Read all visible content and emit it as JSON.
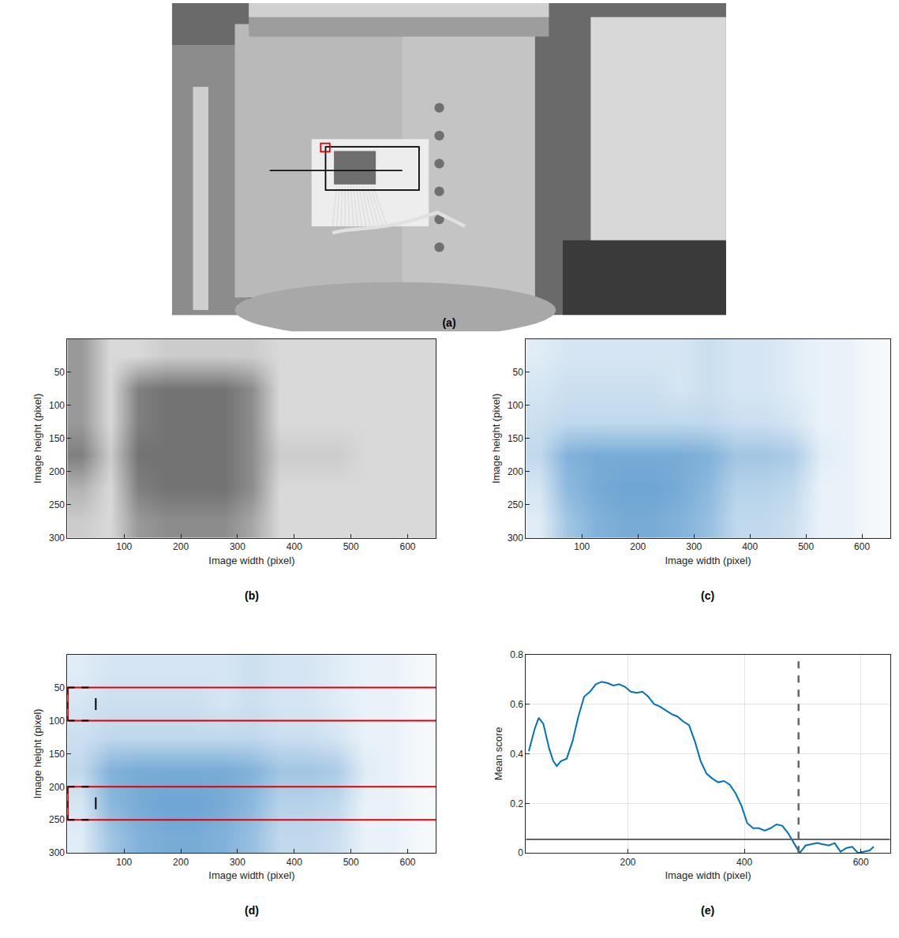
{
  "chart_data": [
    {
      "type": "photo",
      "panel_label": "(a)"
    },
    {
      "type": "heatmap",
      "panel_label": "(b)",
      "color": "#000000",
      "xlabel": "Image width (pixel)",
      "ylabel": "Image height (pixel)",
      "x": [
        25,
        75,
        125,
        175,
        225,
        275,
        325,
        375,
        425,
        475,
        525,
        575,
        625
      ],
      "y": [
        25,
        75,
        125,
        175,
        225,
        275
      ],
      "cells": [
        [
          0.4,
          0.15,
          0.15,
          0.2,
          0.2,
          0.2,
          0.2,
          0.15,
          0.15,
          0.15,
          0.15,
          0.15,
          0.15
        ],
        [
          0.4,
          0.15,
          0.5,
          0.55,
          0.55,
          0.55,
          0.45,
          0.15,
          0.15,
          0.15,
          0.15,
          0.15,
          0.15
        ],
        [
          0.4,
          0.15,
          0.5,
          0.55,
          0.55,
          0.55,
          0.45,
          0.15,
          0.15,
          0.15,
          0.15,
          0.15,
          0.15
        ],
        [
          0.5,
          0.2,
          0.55,
          0.55,
          0.55,
          0.55,
          0.45,
          0.2,
          0.2,
          0.2,
          0.15,
          0.15,
          0.15
        ],
        [
          0.3,
          0.15,
          0.5,
          0.55,
          0.55,
          0.55,
          0.45,
          0.15,
          0.15,
          0.15,
          0.15,
          0.15,
          0.15
        ],
        [
          0.2,
          0.15,
          0.4,
          0.45,
          0.45,
          0.45,
          0.35,
          0.15,
          0.15,
          0.15,
          0.15,
          0.15,
          0.15
        ]
      ],
      "zlim": [
        0,
        1
      ],
      "xlim": [
        0,
        650
      ],
      "ylim": [
        300,
        0
      ],
      "xticks": [
        100,
        200,
        300,
        400,
        500,
        600
      ],
      "yticks": [
        50,
        100,
        150,
        200,
        250,
        300
      ]
    },
    {
      "type": "heatmap",
      "panel_label": "(c)",
      "color": "#2f7fc1",
      "xlabel": "Image width (pixel)",
      "ylabel": "Image height (pixel)",
      "x": [
        25,
        75,
        125,
        175,
        225,
        275,
        325,
        375,
        425,
        475,
        525,
        575,
        625
      ],
      "y": [
        25,
        75,
        125,
        175,
        225,
        275
      ],
      "cells": [
        [
          0.15,
          0.2,
          0.2,
          0.2,
          0.2,
          0.2,
          0.25,
          0.2,
          0.2,
          0.15,
          0.1,
          0.1,
          0.05
        ],
        [
          0.2,
          0.25,
          0.25,
          0.25,
          0.25,
          0.2,
          0.25,
          0.2,
          0.2,
          0.15,
          0.1,
          0.1,
          0.05
        ],
        [
          0.25,
          0.3,
          0.3,
          0.3,
          0.3,
          0.3,
          0.3,
          0.25,
          0.25,
          0.2,
          0.1,
          0.1,
          0.05
        ],
        [
          0.3,
          0.6,
          0.65,
          0.65,
          0.65,
          0.65,
          0.6,
          0.45,
          0.45,
          0.4,
          0.15,
          0.1,
          0.05
        ],
        [
          0.2,
          0.55,
          0.65,
          0.7,
          0.7,
          0.65,
          0.55,
          0.35,
          0.35,
          0.3,
          0.1,
          0.1,
          0.05
        ],
        [
          0.15,
          0.45,
          0.6,
          0.65,
          0.65,
          0.6,
          0.5,
          0.3,
          0.3,
          0.25,
          0.1,
          0.1,
          0.05
        ]
      ],
      "zlim": [
        0,
        1
      ],
      "xlim": [
        0,
        650
      ],
      "ylim": [
        300,
        0
      ],
      "xticks": [
        100,
        200,
        300,
        400,
        500,
        600
      ],
      "yticks": [
        50,
        100,
        150,
        200,
        250,
        300
      ]
    },
    {
      "type": "heatmap",
      "panel_label": "(d)",
      "color": "#2f7fc1",
      "xlabel": "Image width (pixel)",
      "ylabel": "Image height (pixel)",
      "x": [
        25,
        75,
        125,
        175,
        225,
        275,
        325,
        375,
        425,
        475,
        525,
        575,
        625
      ],
      "y": [
        25,
        75,
        125,
        175,
        225,
        275
      ],
      "cells": [
        [
          0.15,
          0.2,
          0.2,
          0.2,
          0.2,
          0.2,
          0.25,
          0.2,
          0.2,
          0.15,
          0.1,
          0.1,
          0.05
        ],
        [
          0.2,
          0.25,
          0.25,
          0.25,
          0.25,
          0.2,
          0.25,
          0.2,
          0.2,
          0.15,
          0.1,
          0.1,
          0.05
        ],
        [
          0.25,
          0.3,
          0.3,
          0.3,
          0.3,
          0.3,
          0.3,
          0.25,
          0.25,
          0.2,
          0.1,
          0.1,
          0.05
        ],
        [
          0.3,
          0.6,
          0.65,
          0.65,
          0.65,
          0.65,
          0.6,
          0.45,
          0.45,
          0.4,
          0.15,
          0.1,
          0.05
        ],
        [
          0.2,
          0.55,
          0.65,
          0.7,
          0.7,
          0.65,
          0.55,
          0.35,
          0.35,
          0.3,
          0.1,
          0.1,
          0.05
        ],
        [
          0.15,
          0.45,
          0.6,
          0.65,
          0.65,
          0.6,
          0.5,
          0.3,
          0.3,
          0.25,
          0.1,
          0.1,
          0.05
        ]
      ],
      "zlim": [
        0,
        1
      ],
      "bands": [
        [
          50,
          100
        ],
        [
          200,
          250
        ]
      ],
      "window": [
        0,
        50
      ],
      "xlim": [
        0,
        650
      ],
      "ylim": [
        300,
        0
      ],
      "xticks": [
        100,
        200,
        300,
        400,
        500,
        600
      ],
      "yticks": [
        50,
        100,
        150,
        200,
        250,
        300
      ]
    },
    {
      "type": "line",
      "panel_label": "(e)",
      "color": "#0072bd",
      "xlabel": "Image width (pixel)",
      "ylabel": "Mean score",
      "x": [
        30,
        40,
        47,
        55,
        65,
        72,
        78,
        85,
        95,
        105,
        115,
        125,
        135,
        145,
        155,
        165,
        175,
        185,
        195,
        205,
        215,
        225,
        235,
        245,
        255,
        265,
        275,
        285,
        295,
        305,
        315,
        325,
        335,
        345,
        355,
        365,
        375,
        385,
        395,
        405,
        415,
        425,
        435,
        445,
        455,
        465,
        475,
        485,
        495,
        505,
        515,
        525,
        535,
        545,
        555,
        565,
        575,
        585,
        595,
        605,
        615,
        622
      ],
      "values": [
        0.41,
        0.5,
        0.545,
        0.52,
        0.42,
        0.37,
        0.35,
        0.37,
        0.38,
        0.45,
        0.55,
        0.63,
        0.65,
        0.68,
        0.69,
        0.685,
        0.675,
        0.68,
        0.67,
        0.65,
        0.645,
        0.65,
        0.63,
        0.6,
        0.59,
        0.575,
        0.56,
        0.55,
        0.53,
        0.515,
        0.45,
        0.37,
        0.32,
        0.3,
        0.285,
        0.29,
        0.275,
        0.24,
        0.19,
        0.12,
        0.1,
        0.1,
        0.09,
        0.1,
        0.115,
        0.11,
        0.08,
        0.04,
        0.0,
        0.03,
        0.035,
        0.04,
        0.035,
        0.03,
        0.04,
        0.005,
        0.02,
        0.025,
        0.0,
        0.005,
        0.01,
        0.025
      ],
      "threshold": 0.055,
      "detected_x": 493,
      "xlim": [
        25,
        650
      ],
      "ylim": [
        0,
        0.8
      ],
      "xticks": [
        200,
        400,
        600
      ],
      "yticks": [
        0,
        0.2,
        0.4,
        0.6,
        0.8
      ],
      "grid": true
    }
  ]
}
